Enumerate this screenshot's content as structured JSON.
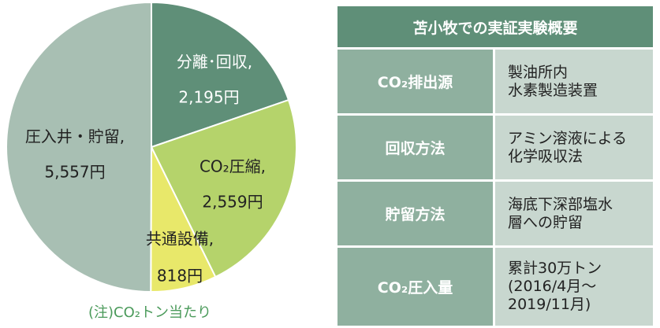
{
  "chart_data": {
    "type": "pie",
    "categories": [
      "分離･回収,",
      "CO₂圧縮,",
      "共通設備,",
      "圧入井・貯留,"
    ],
    "values": [
      2195,
      2559,
      818,
      5557
    ],
    "value_labels": [
      "2,195円",
      "2,559円",
      "818円",
      "5,557円"
    ],
    "colors": [
      "#5f8f78",
      "#b5d36b",
      "#e8e86a",
      "#a8bfb3"
    ],
    "annotation": "(注)CO₂トン当たり"
  },
  "table": {
    "title": "苫小牧での実証実験概要",
    "rows": [
      [
        "CO₂排出源",
        [
          "製油所内",
          "水素製造装置"
        ]
      ],
      [
        "回収方法",
        [
          "アミン溶液による",
          "化学吸収法"
        ]
      ],
      [
        "貯留方法",
        [
          "海底下深部塩水",
          "層への貯留"
        ]
      ],
      [
        "CO₂圧入量",
        [
          "累計30万トン",
          "(2016/4月～",
          "2019/11月)"
        ]
      ]
    ]
  }
}
